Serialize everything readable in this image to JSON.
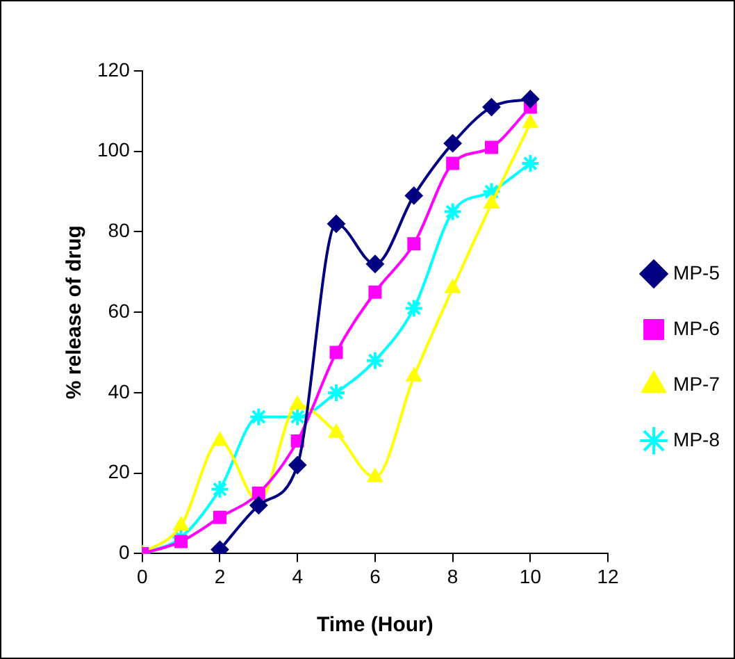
{
  "chart_data": {
    "type": "line",
    "xlabel": "Time (Hour)",
    "ylabel": "% release of drug",
    "x": [
      0,
      1,
      2,
      3,
      4,
      5,
      6,
      7,
      8,
      9,
      10
    ],
    "xlim": [
      0,
      12
    ],
    "xticks": [
      0,
      2,
      4,
      6,
      8,
      10,
      12
    ],
    "ylim": [
      0,
      120
    ],
    "yticks": [
      0,
      20,
      40,
      60,
      80,
      100,
      120
    ],
    "grid": false,
    "legend": "right",
    "series": [
      {
        "name": "MP-5",
        "color": "#000080",
        "marker": "diamond",
        "values": [
          null,
          null,
          1,
          12,
          22,
          82,
          72,
          89,
          102,
          111,
          113
        ]
      },
      {
        "name": "MP-6",
        "color": "#ff00ff",
        "marker": "square",
        "values": [
          0,
          3,
          9,
          15,
          28,
          50,
          65,
          77,
          97,
          101,
          111
        ]
      },
      {
        "name": "MP-7",
        "color": "#ffff00",
        "marker": "triangle",
        "values": [
          0,
          7,
          28,
          13,
          37,
          30,
          19,
          44,
          66,
          87,
          107
        ]
      },
      {
        "name": "MP-8",
        "color": "#00ffff",
        "marker": "cross",
        "values": [
          0,
          4,
          16,
          34,
          34,
          40,
          48,
          61,
          85,
          90,
          97
        ]
      }
    ]
  }
}
